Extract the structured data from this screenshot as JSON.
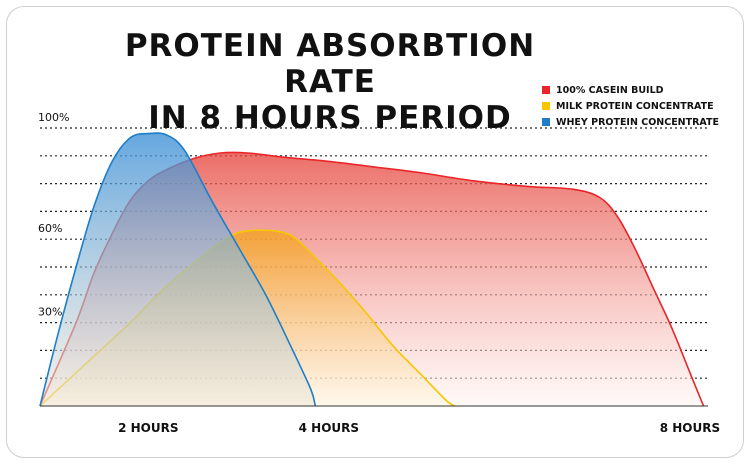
{
  "chart_data": {
    "type": "area",
    "title_lines": [
      "PROTEIN ABSORBTION RATE",
      "IN 8 HOURS PERIOD"
    ],
    "x_ticks": [
      {
        "x": 2,
        "label": "2 HOURS"
      },
      {
        "x": 4,
        "label": "4 HOURS"
      },
      {
        "x": 8,
        "label": "8 HOURS"
      }
    ],
    "y_ticks": [
      {
        "y": 100,
        "label": "100%"
      },
      {
        "y": 60,
        "label": "60%"
      },
      {
        "y": 30,
        "label": "30%"
      }
    ],
    "xlim": [
      0.8,
      8.2
    ],
    "ylim": [
      0,
      100
    ],
    "gridlines_y": [
      100,
      90,
      80,
      70,
      60,
      50,
      40,
      30,
      20,
      10
    ],
    "grid": "dotted",
    "legend_position": "top-right",
    "series": [
      {
        "name": "100% CASEIN BUILD",
        "color": "#e8262a",
        "fill_top": "#e6453c",
        "fill_bottom": "#fff5f2",
        "points": [
          [
            0.8,
            0
          ],
          [
            1.2,
            30
          ],
          [
            1.4,
            48
          ],
          [
            1.6,
            62
          ],
          [
            1.8,
            74
          ],
          [
            2.0,
            81
          ],
          [
            2.2,
            85
          ],
          [
            2.5,
            89
          ],
          [
            2.8,
            91
          ],
          [
            3.1,
            91
          ],
          [
            3.5,
            89.5
          ],
          [
            4.0,
            88
          ],
          [
            4.5,
            86
          ],
          [
            5.0,
            84
          ],
          [
            5.6,
            81
          ],
          [
            6.2,
            79
          ],
          [
            6.7,
            78
          ],
          [
            7.0,
            75
          ],
          [
            7.2,
            68
          ],
          [
            7.4,
            56
          ],
          [
            7.6,
            42
          ],
          [
            7.8,
            28
          ],
          [
            8.0,
            12
          ],
          [
            8.15,
            0
          ]
        ]
      },
      {
        "name": "MILK PROTEIN CONCENTRATE",
        "color": "#f6c700",
        "fill_top": "#f4a11b",
        "fill_bottom": "#fff7e2",
        "points": [
          [
            0.8,
            0
          ],
          [
            1.0,
            6
          ],
          [
            1.4,
            18
          ],
          [
            1.8,
            30
          ],
          [
            2.2,
            43
          ],
          [
            2.6,
            54
          ],
          [
            2.9,
            61
          ],
          [
            3.1,
            63
          ],
          [
            3.4,
            63
          ],
          [
            3.6,
            61
          ],
          [
            3.8,
            55
          ],
          [
            4.1,
            45
          ],
          [
            4.4,
            34
          ],
          [
            4.7,
            22
          ],
          [
            5.0,
            12
          ],
          [
            5.3,
            2
          ],
          [
            5.4,
            0
          ]
        ]
      },
      {
        "name": "WHEY PROTEIN CONCENTRATE",
        "color": "#1e7ec8",
        "fill_top": "#3a8fd6",
        "fill_bottom": "#efe7d6",
        "points": [
          [
            0.8,
            0
          ],
          [
            1.0,
            26
          ],
          [
            1.2,
            50
          ],
          [
            1.4,
            72
          ],
          [
            1.6,
            88
          ],
          [
            1.8,
            96.5
          ],
          [
            2.0,
            98
          ],
          [
            2.2,
            97.5
          ],
          [
            2.4,
            92
          ],
          [
            2.7,
            74
          ],
          [
            3.0,
            57
          ],
          [
            3.3,
            40
          ],
          [
            3.6,
            20
          ],
          [
            3.8,
            6
          ],
          [
            3.85,
            0
          ]
        ]
      }
    ]
  }
}
